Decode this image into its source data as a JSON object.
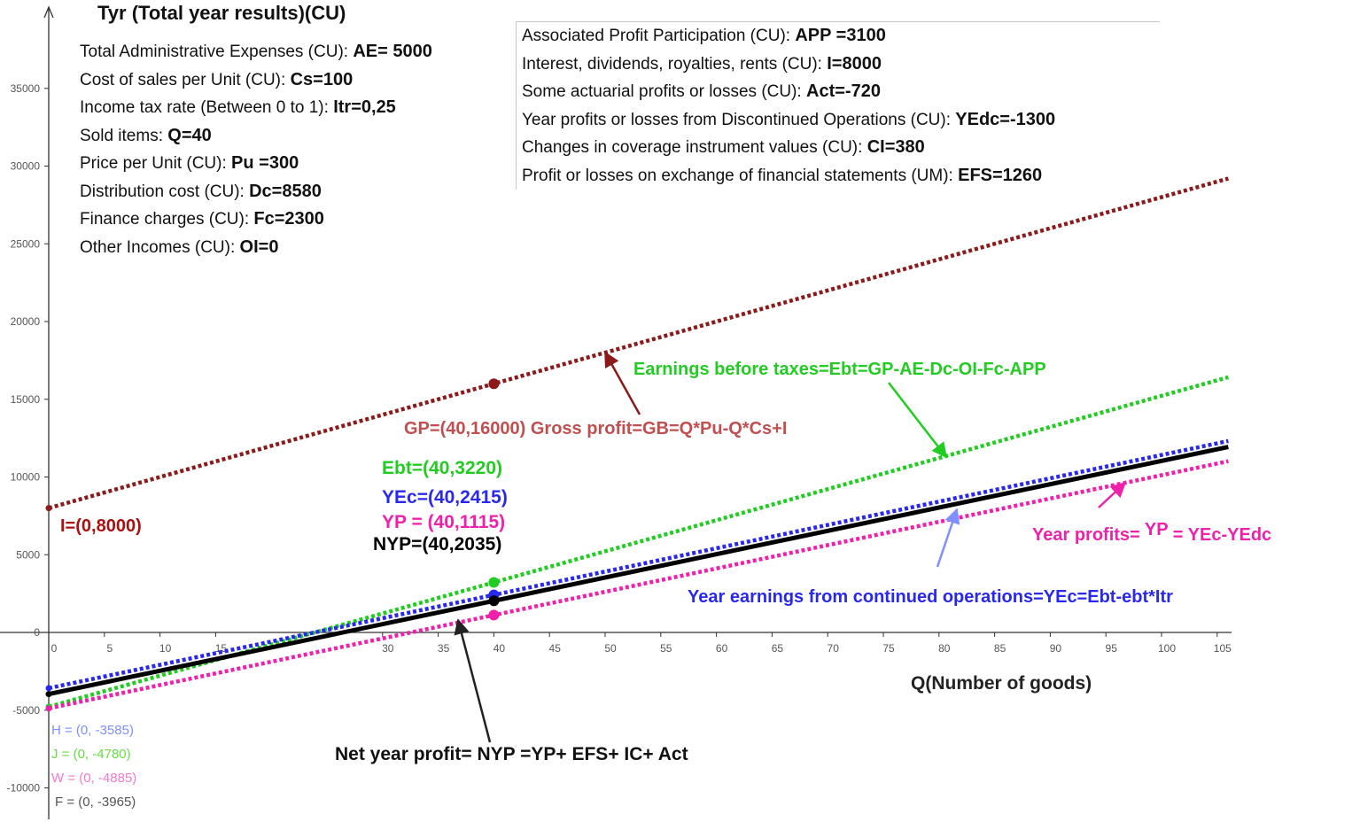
{
  "title": "Tyr (Total year results)(CU)",
  "params_left": [
    {
      "label": "Total Administrative Expenses (CU): ",
      "value": "AE=  5000"
    },
    {
      "label": "Cost of sales per Unit (CU): ",
      "value": "Cs=100"
    },
    {
      "label": "Income tax rate (Between 0 to 1): ",
      "value": "Itr=0,25"
    },
    {
      "label": "Sold items: ",
      "value": "Q=40"
    },
    {
      "label": "Price per Unit (CU): ",
      "value": "Pu =300"
    },
    {
      "label": "Distribution cost (CU): ",
      "value": "Dc=8580"
    },
    {
      "label": "Finance charges (CU): ",
      "value": "Fc=2300"
    },
    {
      "label": "Other Incomes (CU): ",
      "value": "OI=0"
    }
  ],
  "params_right": [
    {
      "label": "Associated Profit Participation (CU): ",
      "value": "APP =3100"
    },
    {
      "label": "Interest, dividends, royalties, rents (CU): ",
      "value": "I=8000"
    },
    {
      "label": "Some actuarial profits or losses (CU): ",
      "value": "Act=-720"
    },
    {
      "label": "Year profits or losses from Discontinued Operations (CU):  ",
      "value": "YEdc=-1300"
    },
    {
      "label": "Changes in coverage instrument values (CU): ",
      "value": "CI=380"
    },
    {
      "label": "Profit or losses on exchange of financial statements (UM): ",
      "value": "EFS=1260"
    }
  ],
  "annotations": {
    "i_point": "I=(0,8000)",
    "gp_label": "GP=(40,16000) Gross profit=GB=Q*Pu-Q*Cs+I",
    "ebt_formula": "Earnings before taxes=Ebt=GP-AE-Dc-OI-Fc-APP",
    "ebt_point": "Ebt=(40,3220)",
    "yec_point": "YEc=(40,2415)",
    "yp_point": "YP = (40,1115)",
    "nyp_point": "NYP=(40,2035)",
    "yp_formula_a": "Year profits=  ",
    "yp_formula_b": "YP",
    "yp_formula_c": " = YEc-YEdc",
    "yec_formula": "Year earnings from continued operations=YEc=Ebt-ebt*Itr",
    "nyp_formula": "Net year profit= NYP =YP+ EFS+ IC+ Act",
    "xlabel": "Q(Number of goods)",
    "h_point": "H = (0, -3585)",
    "j_point": "J = (0, -4780)",
    "w_point": "W = (0, -4885)",
    "f_point": "F = (0, -3965)"
  },
  "colors": {
    "gp": "#8b1a1a",
    "ebt": "#22cc22",
    "yec": "#2828ee",
    "yp": "#ee22aa",
    "nyp": "#000000",
    "i_label": "#aa1111",
    "gp_label": "#c05050",
    "axis": "#333333"
  },
  "chart_data": {
    "type": "line",
    "xlabel": "Q(Number of goods)",
    "ylabel": "",
    "xlim": [
      0,
      106
    ],
    "ylim": [
      -10000,
      39000
    ],
    "x_ticks": [
      0,
      5,
      10,
      15,
      30,
      35,
      40,
      45,
      50,
      55,
      60,
      65,
      70,
      75,
      80,
      85,
      90,
      95,
      100,
      105
    ],
    "y_ticks": [
      -10000,
      -5000,
      0,
      5000,
      10000,
      15000,
      20000,
      25000,
      30000,
      35000
    ],
    "grid": false,
    "series": [
      {
        "name": "GP",
        "style": "dotted",
        "x": [
          0,
          106
        ],
        "y": [
          8000,
          29200
        ],
        "marked_point": [
          40,
          16000
        ]
      },
      {
        "name": "Ebt",
        "style": "dotted",
        "x": [
          0,
          106
        ],
        "y": [
          -4780,
          16420
        ],
        "marked_point": [
          40,
          3220
        ]
      },
      {
        "name": "YEc",
        "style": "dotted",
        "x": [
          0,
          106
        ],
        "y": [
          -3585,
          12315
        ],
        "marked_point": [
          40,
          2415
        ]
      },
      {
        "name": "YP",
        "style": "dotted",
        "x": [
          0,
          106
        ],
        "y": [
          -4885,
          11015
        ],
        "marked_point": [
          40,
          1115
        ]
      },
      {
        "name": "NYP",
        "style": "solid",
        "x": [
          0,
          106
        ],
        "y": [
          -3965,
          11935
        ],
        "marked_point": [
          40,
          2035
        ]
      }
    ]
  }
}
